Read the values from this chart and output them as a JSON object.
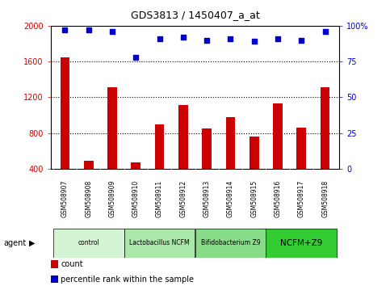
{
  "title": "GDS3813 / 1450407_a_at",
  "categories": [
    "GSM508907",
    "GSM508908",
    "GSM508909",
    "GSM508910",
    "GSM508911",
    "GSM508912",
    "GSM508913",
    "GSM508914",
    "GSM508915",
    "GSM508916",
    "GSM508917",
    "GSM508918"
  ],
  "bar_values": [
    1650,
    490,
    1310,
    470,
    900,
    1110,
    850,
    980,
    760,
    1130,
    860,
    1310
  ],
  "percentile_values": [
    97,
    97,
    96,
    78,
    91,
    92,
    90,
    91,
    89,
    91,
    90,
    96
  ],
  "bar_color": "#cc0000",
  "dot_color": "#0000cc",
  "ylim_left": [
    400,
    2000
  ],
  "ylim_right": [
    0,
    100
  ],
  "yticks_left": [
    400,
    800,
    1200,
    1600,
    2000
  ],
  "yticks_right": [
    0,
    25,
    50,
    75,
    100
  ],
  "grid_values": [
    800,
    1200,
    1600
  ],
  "agent_groups": [
    {
      "label": "control",
      "start": 0,
      "end": 2,
      "color": "#d4f5d4"
    },
    {
      "label": "Lactobacillus NCFM",
      "start": 3,
      "end": 5,
      "color": "#aae8aa"
    },
    {
      "label": "Bifidobacterium Z9",
      "start": 6,
      "end": 8,
      "color": "#88dd88"
    },
    {
      "label": "NCFM+Z9",
      "start": 9,
      "end": 11,
      "color": "#33cc33"
    }
  ],
  "legend_count_color": "#cc0000",
  "legend_dot_color": "#0000cc",
  "background_color": "#ffffff",
  "plot_bg_color": "#ffffff",
  "xtick_bg_color": "#d8d8d8",
  "ylabel_left_color": "#cc0000",
  "ylabel_right_color": "#0000cc"
}
